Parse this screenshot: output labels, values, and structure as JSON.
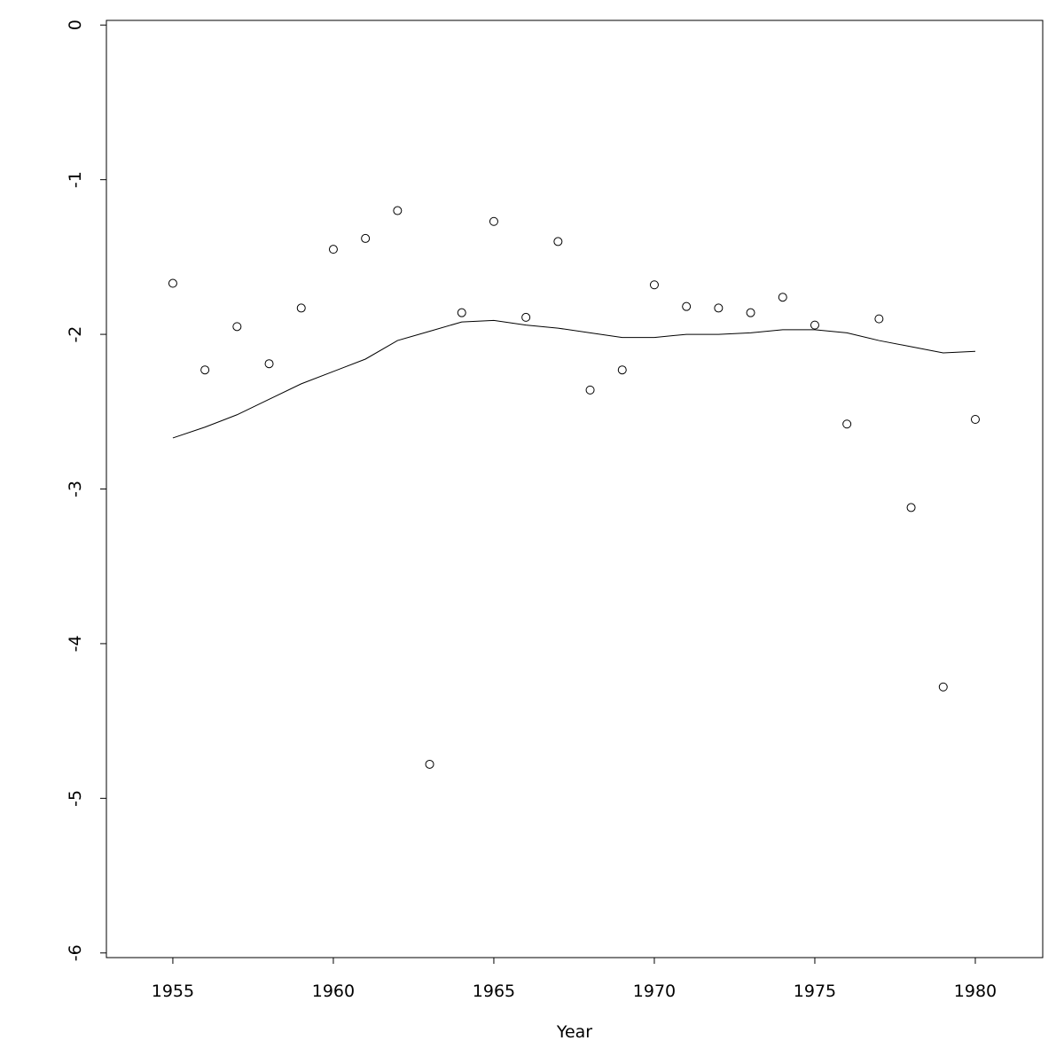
{
  "chart_data": {
    "type": "scatter",
    "xlabel": "Year",
    "x": [
      1955,
      1956,
      1957,
      1958,
      1959,
      1960,
      1961,
      1962,
      1963,
      1964,
      1965,
      1966,
      1967,
      1968,
      1969,
      1970,
      1971,
      1972,
      1973,
      1974,
      1975,
      1976,
      1977,
      1978,
      1979,
      1980
    ],
    "series": [
      {
        "style": "points",
        "color": "#000000",
        "values": [
          -1.67,
          -2.23,
          -1.95,
          -2.19,
          -1.83,
          -1.45,
          -1.38,
          -1.2,
          -4.78,
          -1.86,
          -1.27,
          -1.89,
          -1.4,
          -2.36,
          -2.23,
          -1.68,
          -1.82,
          -1.83,
          -1.86,
          -1.76,
          -1.94,
          -2.58,
          -1.9,
          -3.12,
          -4.28,
          -2.55
        ]
      },
      {
        "style": "line",
        "color": "#000000",
        "values": [
          -2.67,
          -2.6,
          -2.52,
          -2.42,
          -2.32,
          -2.24,
          -2.16,
          -2.04,
          -1.98,
          -1.92,
          -1.91,
          -1.94,
          -1.96,
          -1.99,
          -2.02,
          -2.02,
          -2.0,
          -2.0,
          -1.99,
          -1.97,
          -1.97,
          -1.99,
          -2.04,
          -2.08,
          -2.12,
          -2.11
        ]
      }
    ],
    "xlim": [
      1952.93,
      1982.1
    ],
    "ylim": [
      -6.03,
      0.03
    ],
    "xticks": [
      1955,
      1960,
      1965,
      1970,
      1975,
      1980
    ],
    "yticks": [
      0,
      -1,
      -2,
      -3,
      -4,
      -5,
      -6
    ],
    "grid": false
  }
}
